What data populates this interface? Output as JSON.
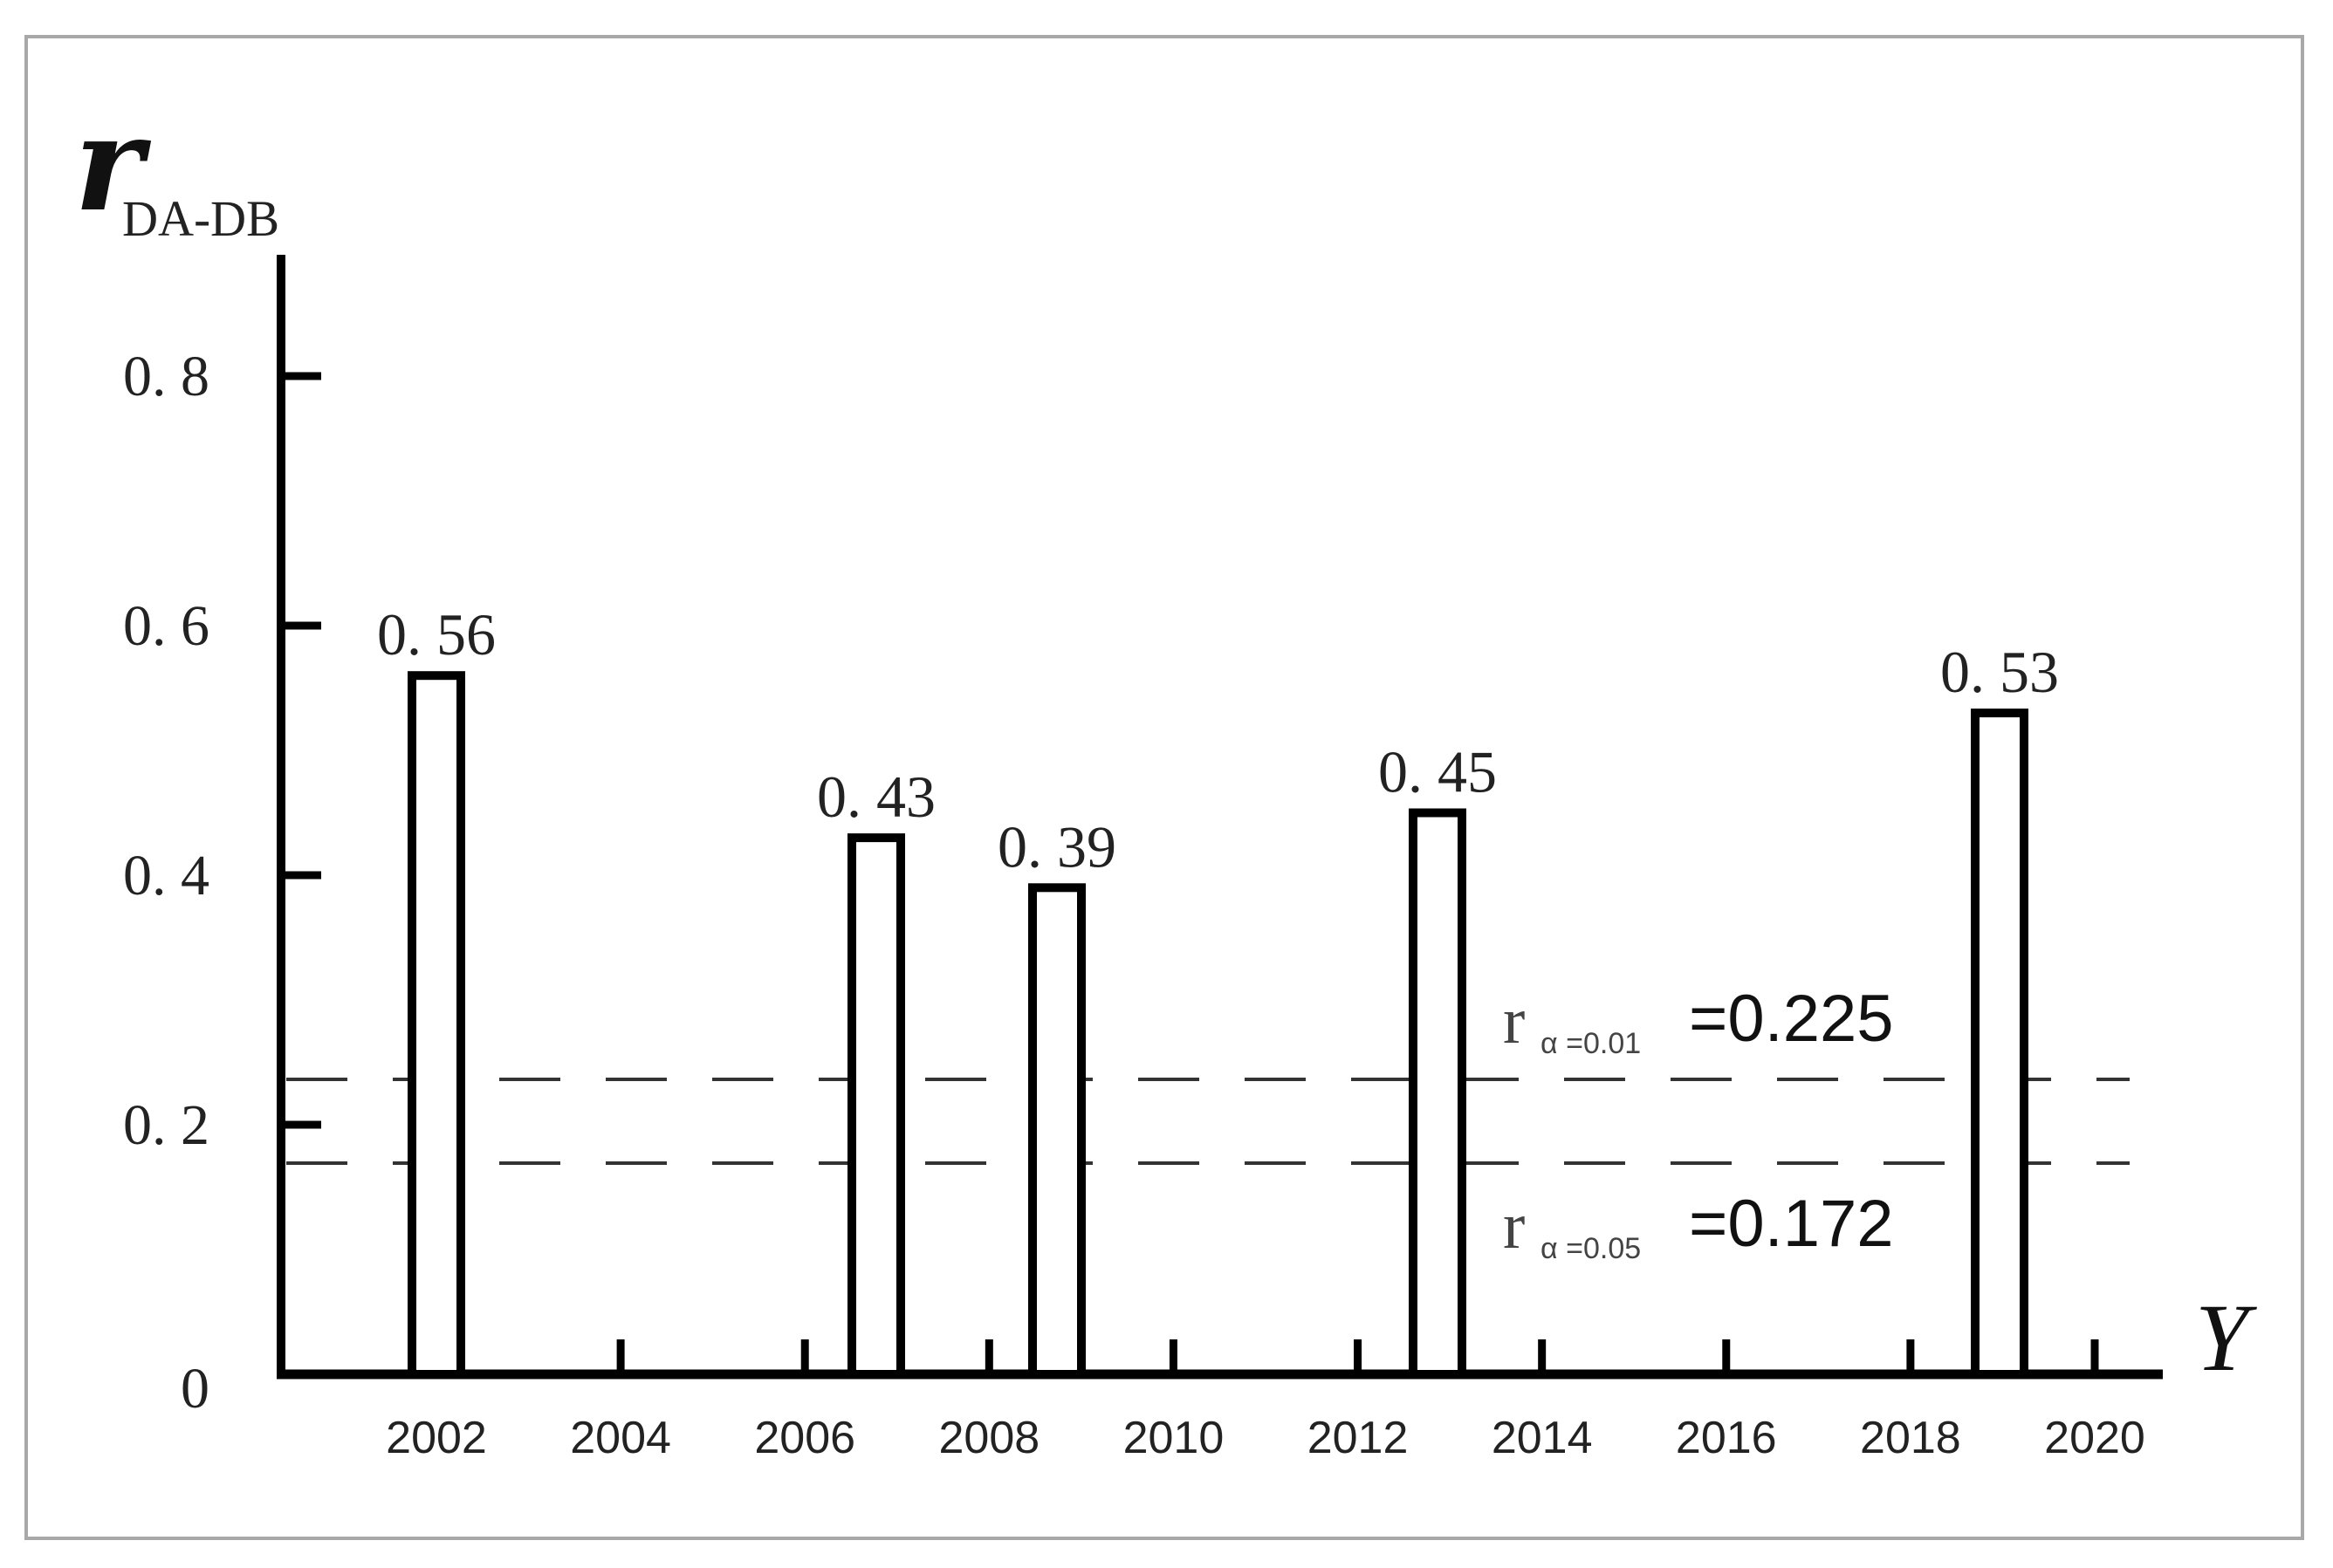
{
  "chart_data": {
    "type": "bar",
    "title": "",
    "xlabel": "Y",
    "ylabel": "r",
    "ylabel_subscript": "DA-DB",
    "ylim": [
      0,
      0.88
    ],
    "yticks": [
      0,
      0.2,
      0.4,
      0.6,
      0.8
    ],
    "ytick_labels": [
      "0",
      "0. 2",
      "0. 4",
      "0. 6",
      "0. 8"
    ],
    "xticks": [
      2002,
      2004,
      2006,
      2008,
      2010,
      2012,
      2014,
      2016,
      2018,
      2020
    ],
    "xtick_labels": [
      "2002",
      "2004",
      "2006",
      "2008",
      "2010",
      "2012",
      "2014",
      "2016",
      "2018",
      "2020"
    ],
    "categories": [
      "2002",
      "2007",
      "2009",
      "2013",
      "2019"
    ],
    "values": [
      0.56,
      0.43,
      0.39,
      0.45,
      0.53
    ],
    "data_labels": [
      "0. 56",
      "0. 43",
      "0. 39",
      "0. 45",
      "0. 53"
    ],
    "reference_lines": [
      {
        "name": "r_alpha=0.01",
        "value": 0.225,
        "style": "dashed",
        "label_main": "r",
        "label_sub": "α =0.01",
        "label_value": "=0.225"
      },
      {
        "name": "r_alpha=0.05",
        "value": 0.172,
        "style": "dashed",
        "label_main": "r",
        "label_sub": "α =0.05",
        "label_value": "=0.172"
      }
    ],
    "grid": false,
    "legend": null,
    "bar_style": {
      "fill": "#ffffff",
      "stroke": "#000000"
    }
  }
}
